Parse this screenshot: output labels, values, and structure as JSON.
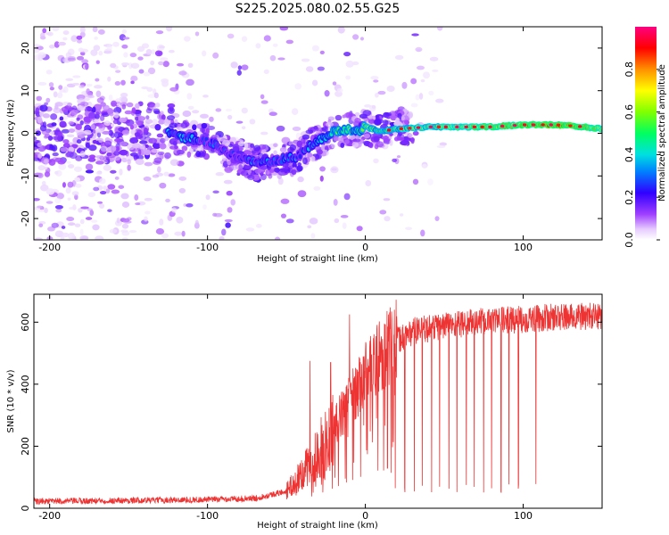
{
  "chart_data": [
    {
      "type": "heatmap",
      "title": "S225.2025.080.02.55.G25",
      "xlabel": "Height of straight line (km)",
      "ylabel": "Frequency (Hz)",
      "xlim": [
        -210,
        150
      ],
      "ylim": [
        -25,
        25
      ],
      "xticks": [
        -200,
        -100,
        0,
        100
      ],
      "yticks": [
        -20,
        -10,
        0,
        10,
        20
      ],
      "colorbar": {
        "label": "Normalized spectral amplitude",
        "range": [
          0.0,
          1.0
        ],
        "ticks": [
          0.0,
          0.2,
          0.4,
          0.6,
          0.8
        ],
        "colors": [
          "#ffffff",
          "#d9b3ff",
          "#8000ff",
          "#0000ff",
          "#00c0ff",
          "#00ff80",
          "#80ff00",
          "#ffff00",
          "#ff8000",
          "#ff0000",
          "#ff0080"
        ]
      },
      "ridge": {
        "x": [
          -125,
          -115,
          -105,
          -95,
          -85,
          -75,
          -70,
          -65,
          -60,
          -55,
          -50,
          -45,
          -40,
          -35,
          -30,
          -25,
          -20,
          -15,
          -10,
          -5,
          0,
          10,
          20,
          40,
          60,
          80,
          100,
          120,
          140,
          150
        ],
        "y": [
          0,
          -1,
          -1.5,
          -2.5,
          -5,
          -6,
          -7,
          -7,
          -6.5,
          -6.5,
          -5.5,
          -6,
          -4.5,
          -3,
          -1.5,
          -1,
          0.5,
          0.5,
          1,
          0.5,
          1.5,
          0.5,
          1,
          1.5,
          1.5,
          1.5,
          2,
          2,
          1.5,
          1
        ],
        "amplitude": [
          0.35,
          0.35,
          0.3,
          0.25,
          0.25,
          0.3,
          0.3,
          0.3,
          0.3,
          0.3,
          0.3,
          0.3,
          0.3,
          0.35,
          0.4,
          0.45,
          0.5,
          0.55,
          0.55,
          0.5,
          0.55,
          0.6,
          0.6,
          0.65,
          0.7,
          0.75,
          0.8,
          0.85,
          0.8,
          0.7
        ]
      }
    },
    {
      "type": "line",
      "xlabel": "Height of straight line (km)",
      "ylabel": "SNR (10 * v/v)",
      "xlim": [
        -210,
        150
      ],
      "ylim": [
        0,
        690
      ],
      "xticks": [
        -200,
        -100,
        0,
        100
      ],
      "yticks": [
        0,
        200,
        400,
        600
      ],
      "color": "#ee3333",
      "trend": {
        "x": [
          -210,
          -150,
          -100,
          -70,
          -50,
          -40,
          -30,
          -20,
          -10,
          0,
          10,
          20,
          30,
          50,
          70,
          100,
          120,
          150
        ],
        "y": [
          22,
          25,
          28,
          32,
          55,
          110,
          180,
          260,
          350,
          430,
          500,
          540,
          570,
          590,
          600,
          610,
          615,
          620
        ]
      },
      "dropouts_x": [
        -34,
        -27,
        -21,
        -17,
        -12,
        -8,
        -3,
        8,
        14,
        19,
        25,
        31,
        36,
        42,
        47,
        53,
        58,
        64,
        69,
        75,
        80,
        86,
        91,
        97,
        108
      ],
      "spikes": [
        {
          "x": -10,
          "y": 625
        },
        {
          "x": -35,
          "y": 475
        },
        {
          "x": -22,
          "y": 470
        }
      ]
    }
  ]
}
